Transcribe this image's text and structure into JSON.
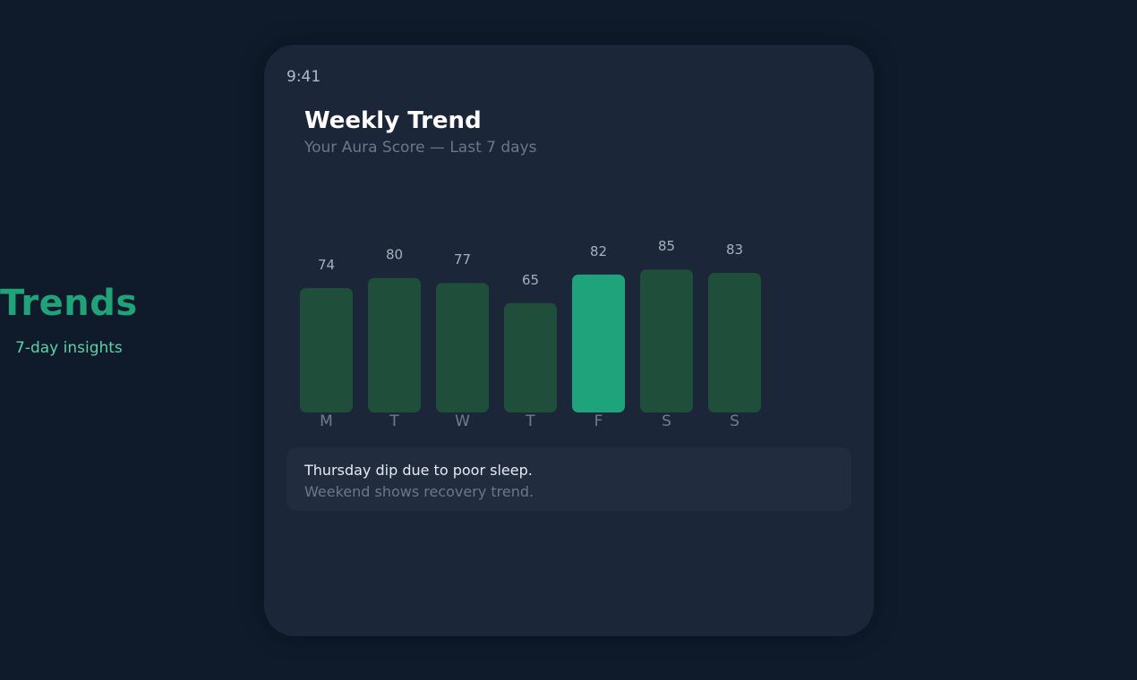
{
  "side": {
    "title": "Trends",
    "subtitle": "7-day insights"
  },
  "phone": {
    "time": "9:41",
    "title": "Weekly Trend",
    "subtitle": "Your Aura Score — Last 7 days"
  },
  "insight": {
    "line1": "Thursday dip due to poor sleep.",
    "line2": "Weekend shows recovery trend."
  },
  "colors": {
    "background": "#0f1b2b",
    "card": "#1b2638",
    "bar": "#1f4e3a",
    "bar_highlight": "#1fa37a",
    "accent": "#21a37a"
  },
  "chart_data": {
    "type": "bar",
    "title": "Weekly Trend",
    "categories": [
      "M",
      "T",
      "W",
      "T",
      "F",
      "S",
      "S"
    ],
    "values": [
      74,
      80,
      77,
      65,
      82,
      85,
      83
    ],
    "highlight_index": 4,
    "ylim": [
      0,
      100
    ],
    "grid": false,
    "legend": "none",
    "data_labels": true
  }
}
